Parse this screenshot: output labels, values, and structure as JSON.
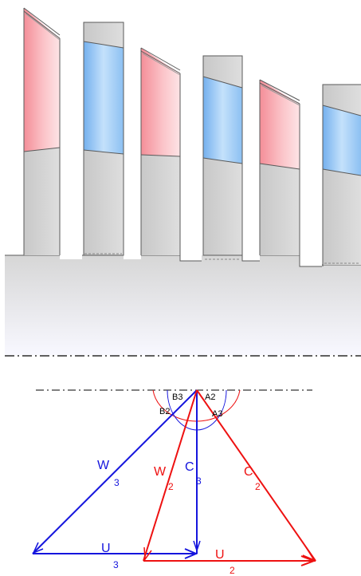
{
  "colors": {
    "rotor_blade": "#f7a0a8",
    "stator_blade": "#a9d0f5",
    "casing_gray": "#d2d2d2",
    "outline": "#5a5a5a",
    "rotor_triangle": "#ee1111",
    "stator_triangle": "#1515dd",
    "centerline": "#000000"
  },
  "stages": {
    "rotor_count": 3,
    "stator_count": 3
  },
  "angles": {
    "b3": "B3",
    "a2": "A2",
    "b2": "B2",
    "a3": "A3"
  },
  "vectors": {
    "w3": {
      "main": "W",
      "sub": "3"
    },
    "w2": {
      "main": "W",
      "sub": "2"
    },
    "c3": {
      "main": "C",
      "sub": "3"
    },
    "c2": {
      "main": "C",
      "sub": "2"
    },
    "u3": {
      "main": "U",
      "sub": "3"
    },
    "u2": {
      "main": "U",
      "sub": "2"
    }
  }
}
